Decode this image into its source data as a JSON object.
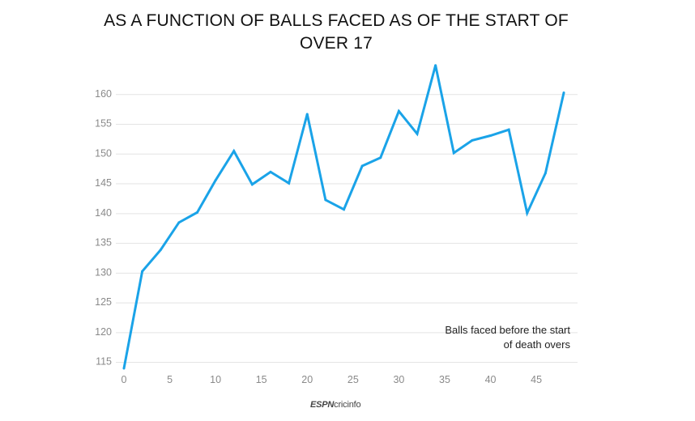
{
  "title": "AS A FUNCTION OF BALLS FACED AS OF THE START OF OVER 17",
  "annotation": [
    "Balls faced before the start",
    "of death overs"
  ],
  "logo": {
    "espn": "ESPN",
    "cricinfo": "cricinfo"
  },
  "chart_data": {
    "type": "line",
    "x": [
      0,
      2,
      4,
      6,
      8,
      10,
      12,
      14,
      16,
      18,
      20,
      22,
      24,
      26,
      28,
      30,
      32,
      34,
      36,
      38,
      40,
      42,
      44,
      46,
      48
    ],
    "series": [
      {
        "values": [
          114.0,
          130.3,
          133.9,
          138.5,
          140.2,
          145.6,
          150.5,
          144.9,
          147.0,
          145.1,
          156.7,
          142.3,
          140.7,
          148.0,
          149.4,
          157.2,
          153.4,
          164.9,
          150.2,
          152.3,
          153.1,
          154.1,
          140.1,
          146.8,
          160.3
        ],
        "color": "#1aa3e8"
      }
    ],
    "x_ticks": [
      0,
      5,
      10,
      15,
      20,
      25,
      30,
      35,
      40,
      45
    ],
    "y_ticks": [
      115,
      120,
      125,
      130,
      135,
      140,
      145,
      150,
      155,
      160
    ],
    "xlim": [
      0,
      49.5
    ],
    "ylim": [
      114,
      165
    ],
    "grid": "horizontal",
    "colors": {
      "line": "#1aa3e8",
      "grid": "#e3e3e3",
      "tick_text": "#8a8a8a"
    }
  }
}
